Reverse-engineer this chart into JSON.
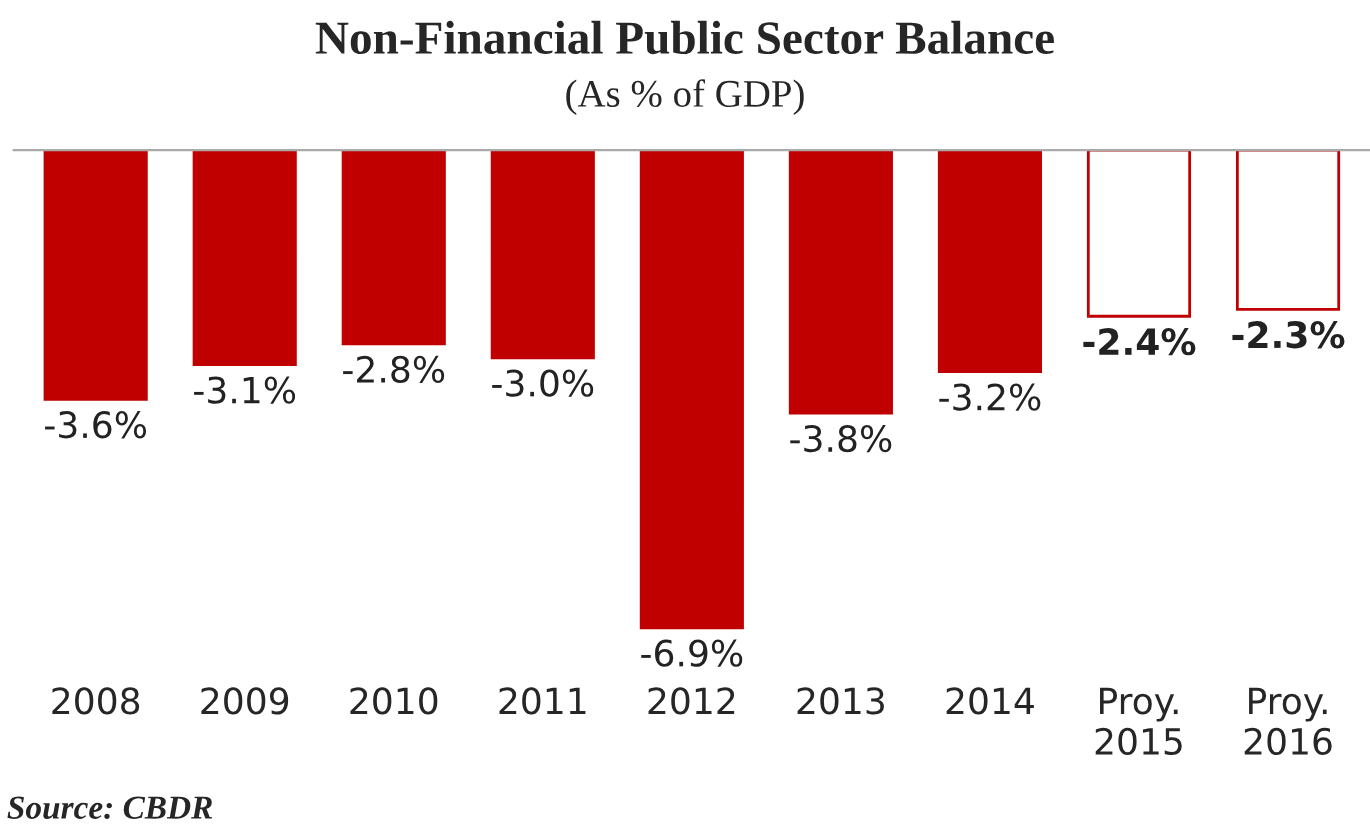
{
  "chart_data": {
    "type": "bar",
    "title": "Non-Financial Public Sector Balance",
    "subtitle": "(As % of GDP)",
    "categories": [
      "2008",
      "2009",
      "2010",
      "2011",
      "2012",
      "2013",
      "2014",
      "Proy.\n2015",
      "Proy.\n2016"
    ],
    "series": [
      {
        "color": "#c00000",
        "values": [
          -3.6,
          -3.1,
          -2.8,
          -3.0,
          -6.9,
          -3.8,
          -3.2,
          null,
          null
        ],
        "value_labels": [
          "-3.6%",
          "-3.1%",
          "-2.8%",
          "-3.0%",
          "-6.9%",
          "-3.8%",
          "-3.2%",
          null,
          null
        ]
      },
      {
        "color": "#ffffff",
        "values": [
          null,
          null,
          null,
          null,
          null,
          null,
          null,
          -2.4,
          -2.3
        ],
        "value_labels": [
          null,
          null,
          null,
          null,
          null,
          null,
          null,
          "-2.4%",
          "-2.3%"
        ]
      }
    ],
    "annotations": [
      "Source: CBDR"
    ],
    "grid": false,
    "legend": false
  }
}
